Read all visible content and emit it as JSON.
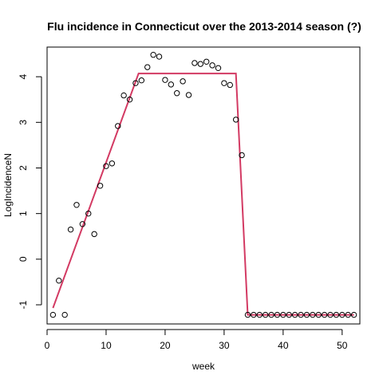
{
  "chart_data": {
    "type": "scatter",
    "title": "Flu incidence in Connecticut over the 2013-2014 season (?)",
    "xlabel": "week",
    "ylabel": "LogIncidenceN",
    "xlim": [
      0,
      53
    ],
    "ylim": [
      -1.42,
      4.65
    ],
    "x_ticks": [
      0,
      10,
      20,
      30,
      40,
      50
    ],
    "y_ticks": [
      -1,
      0,
      1,
      2,
      3,
      4
    ],
    "grid": false,
    "legend": "none",
    "points": {
      "x": [
        1,
        2,
        3,
        4,
        5,
        6,
        7,
        8,
        9,
        10,
        11,
        12,
        13,
        14,
        15,
        16,
        17,
        18,
        19,
        20,
        21,
        22,
        23,
        24,
        25,
        26,
        27,
        28,
        29,
        30,
        31,
        32,
        33,
        34,
        35,
        36,
        37,
        38,
        39,
        40,
        41,
        42,
        43,
        44,
        45,
        46,
        47,
        48,
        49,
        50,
        51,
        52
      ],
      "y": [
        -1.22,
        -0.47,
        -1.22,
        0.65,
        1.19,
        0.77,
        1.0,
        0.55,
        1.61,
        2.04,
        2.1,
        2.92,
        3.59,
        3.5,
        3.86,
        3.92,
        4.21,
        4.48,
        4.44,
        3.93,
        3.83,
        3.64,
        3.9,
        3.6,
        4.3,
        4.28,
        4.33,
        4.25,
        4.19,
        3.86,
        3.82,
        3.06,
        2.28,
        -1.22,
        -1.22,
        -1.22,
        -1.22,
        -1.22,
        -1.22,
        -1.22,
        -1.22,
        -1.22,
        -1.22,
        -1.22,
        -1.22,
        -1.22,
        -1.22,
        -1.22,
        -1.22,
        -1.22,
        -1.22,
        -1.22
      ],
      "marker": "open-circle",
      "color": "#000000"
    },
    "fit_line": {
      "x": [
        1,
        15.5,
        32,
        34,
        52
      ],
      "y": [
        -1.07,
        4.07,
        4.07,
        -1.22,
        -1.22
      ],
      "color": "#d33a63"
    }
  }
}
